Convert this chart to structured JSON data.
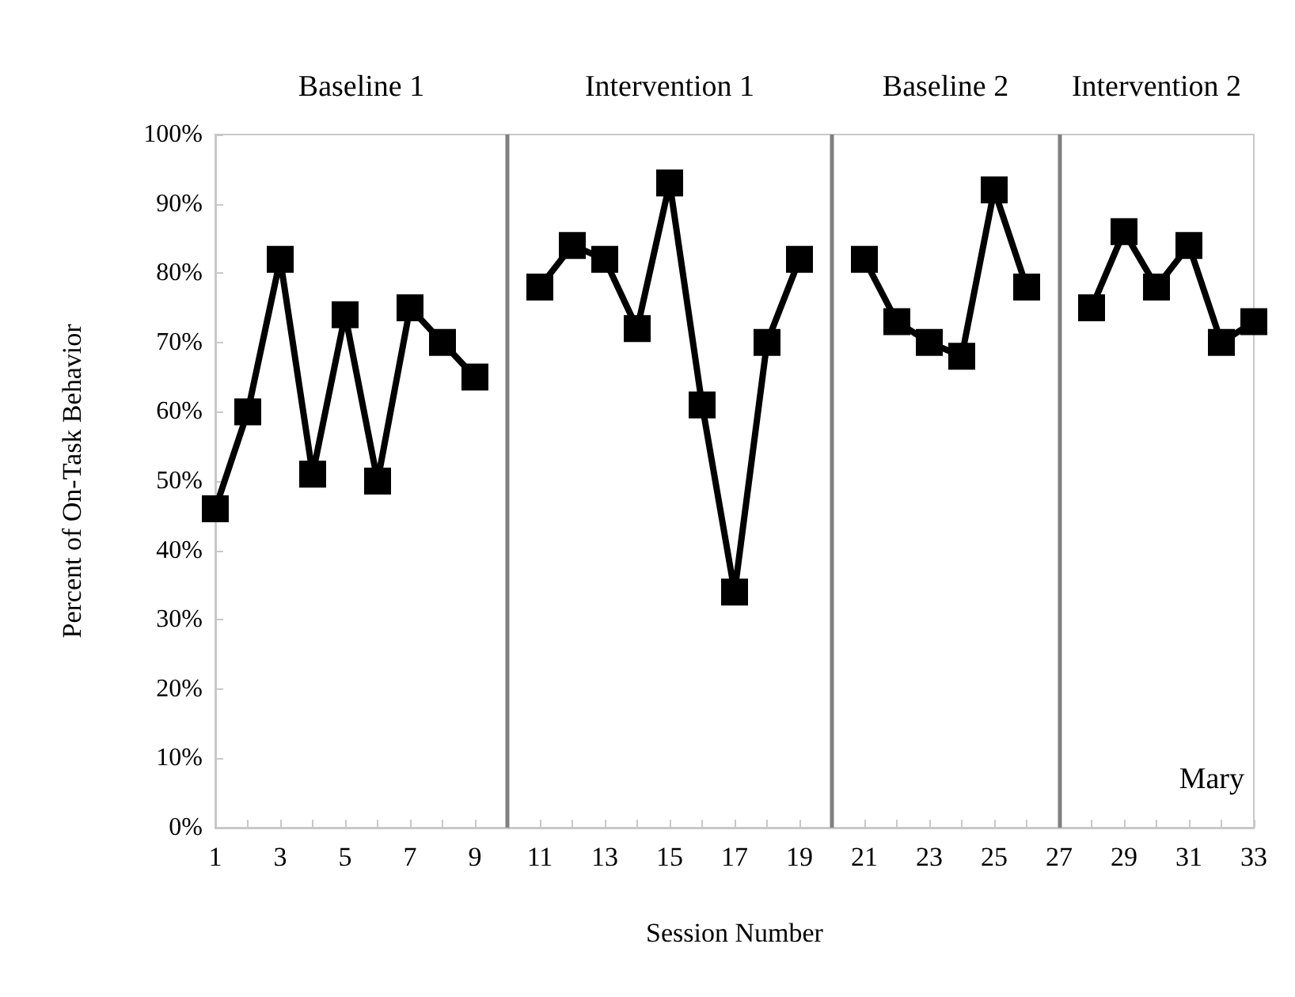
{
  "chart_data": {
    "type": "line",
    "xlabel": "Session Number",
    "ylabel": "Percent of On-Task Behavior",
    "annotations": [
      "Baseline 1",
      "Intervention 1",
      "Baseline 2",
      "Intervention 2",
      "Mary"
    ],
    "series": [
      {
        "color": "#000000",
        "x": [
          1,
          2,
          3,
          4,
          5,
          6,
          7,
          8,
          9
        ],
        "values": [
          46,
          60,
          82,
          51,
          74,
          50,
          75,
          70,
          65
        ]
      },
      {
        "color": "#000000",
        "x": [
          11,
          12,
          13,
          14,
          15,
          16,
          17,
          18,
          19
        ],
        "values": [
          78,
          84,
          82,
          72,
          93,
          61,
          34,
          70,
          82
        ]
      },
      {
        "color": "#000000",
        "x": [
          21,
          22,
          23,
          24,
          25,
          26
        ],
        "values": [
          82,
          73,
          70,
          68,
          92,
          78
        ]
      },
      {
        "color": "#000000",
        "x": [
          28,
          29,
          30,
          31,
          32,
          33
        ],
        "values": [
          75,
          86,
          78,
          84,
          70,
          73
        ]
      }
    ],
    "ref_lines": [
      {
        "axis": "x",
        "value": 10,
        "color": "#808080"
      },
      {
        "axis": "x",
        "value": 20,
        "color": "#808080"
      },
      {
        "axis": "x",
        "value": 27,
        "color": "#808080"
      }
    ],
    "xlim": [
      1,
      33
    ],
    "xticks": [
      1,
      {
        "value": 2,
        "label": null
      },
      3,
      {
        "value": 4,
        "label": null
      },
      5,
      {
        "value": 6,
        "label": null
      },
      7,
      {
        "value": 8,
        "label": null
      },
      9,
      {
        "value": 10,
        "label": null
      },
      11,
      {
        "value": 12,
        "label": null
      },
      13,
      {
        "value": 14,
        "label": null
      },
      15,
      {
        "value": 16,
        "label": null
      },
      17,
      {
        "value": 18,
        "label": null
      },
      19,
      {
        "value": 20,
        "label": null
      },
      21,
      {
        "value": 22,
        "label": null
      },
      23,
      {
        "value": 24,
        "label": null
      },
      25,
      {
        "value": 26,
        "label": null
      },
      27,
      {
        "value": 28,
        "label": null
      },
      29,
      {
        "value": 30,
        "label": null
      },
      31,
      {
        "value": 32,
        "label": null
      },
      33
    ],
    "ylim": [
      0,
      100
    ],
    "yticks": [
      {
        "value": 0,
        "label": "0%"
      },
      {
        "value": 10,
        "label": "10%"
      },
      {
        "value": 20,
        "label": "20%"
      },
      {
        "value": 30,
        "label": "30%"
      },
      {
        "value": 40,
        "label": "40%"
      },
      {
        "value": 50,
        "label": "50%"
      },
      {
        "value": 60,
        "label": "60%"
      },
      {
        "value": 70,
        "label": "70%"
      },
      {
        "value": 80,
        "label": "80%"
      },
      {
        "value": 90,
        "label": "90%"
      },
      {
        "value": 100,
        "label": "100%"
      }
    ],
    "grid": false,
    "marker": "square",
    "line_style": "solid"
  }
}
